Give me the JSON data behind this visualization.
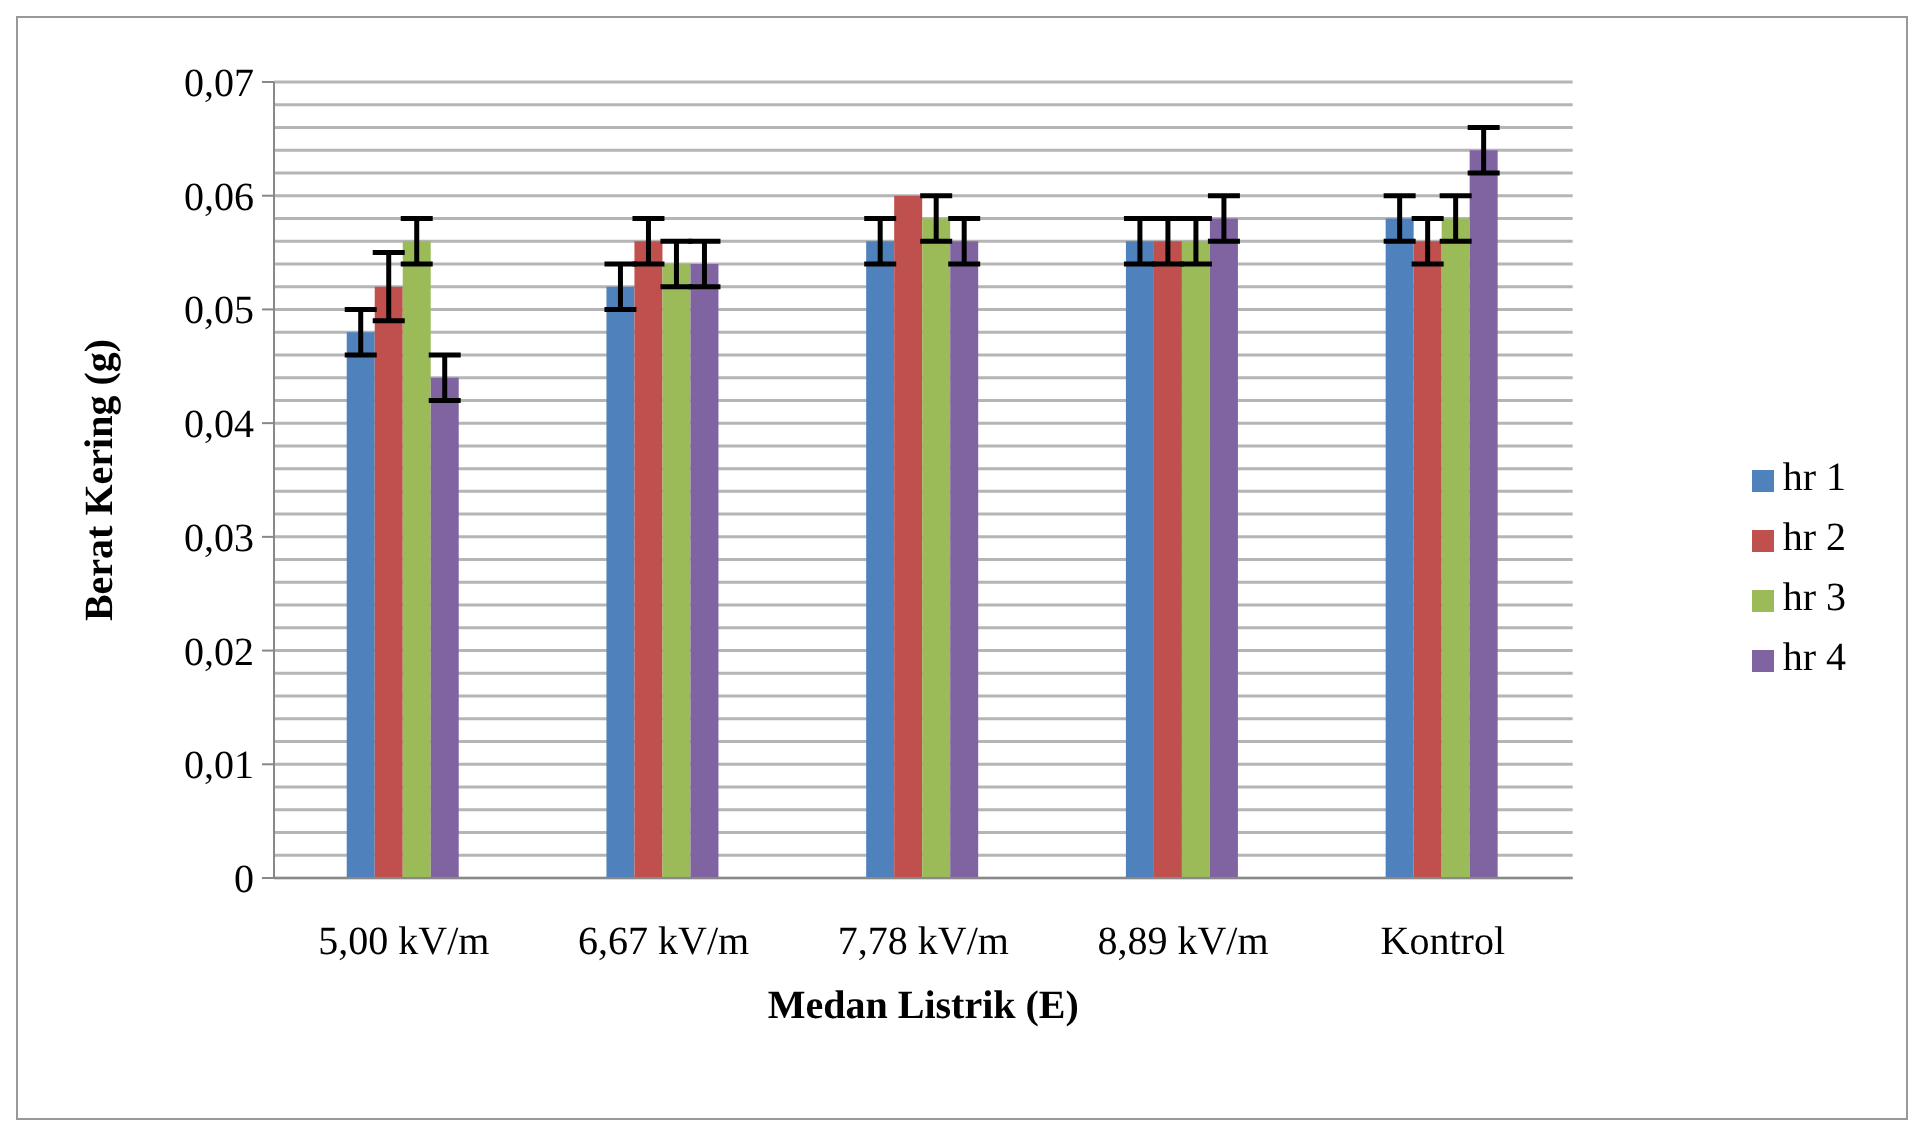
{
  "chart_data": {
    "type": "bar",
    "xlabel": "Medan Listrik (E)",
    "ylabel": "Berat Kering (g)",
    "categories": [
      "5,00 kV/m",
      "6,67 kV/m",
      "7,78 kV/m",
      "8,89 kV/m",
      "Kontrol"
    ],
    "series": [
      {
        "name": "hr 1",
        "color": "#4f81bd",
        "values": [
          0.048,
          0.052,
          0.056,
          0.056,
          0.058
        ],
        "errors": [
          0.002,
          0.002,
          0.002,
          0.002,
          0.002
        ]
      },
      {
        "name": "hr 2",
        "color": "#c0504d",
        "values": [
          0.052,
          0.056,
          0.06,
          0.056,
          0.056
        ],
        "errors": [
          0.003,
          0.002,
          0,
          0.002,
          0.002
        ]
      },
      {
        "name": "hr 3",
        "color": "#9bbb59",
        "values": [
          0.056,
          0.054,
          0.058,
          0.056,
          0.058
        ],
        "errors": [
          0.002,
          0.002,
          0.002,
          0.002,
          0.002
        ]
      },
      {
        "name": "hr 4",
        "color": "#8064a2",
        "values": [
          0.044,
          0.054,
          0.056,
          0.058,
          0.064
        ],
        "errors": [
          0.002,
          0.002,
          0.002,
          0.002,
          0.002
        ]
      }
    ],
    "ylim": [
      0,
      0.07
    ],
    "yticks": [
      {
        "value": 0,
        "label": "0"
      },
      {
        "value": 0.002,
        "label": null
      },
      {
        "value": 0.004,
        "label": null
      },
      {
        "value": 0.006,
        "label": null
      },
      {
        "value": 0.008,
        "label": null
      },
      {
        "value": 0.01,
        "label": "0,01"
      },
      {
        "value": 0.012,
        "label": null
      },
      {
        "value": 0.014,
        "label": null
      },
      {
        "value": 0.016,
        "label": null
      },
      {
        "value": 0.018,
        "label": null
      },
      {
        "value": 0.02,
        "label": "0,02"
      },
      {
        "value": 0.022,
        "label": null
      },
      {
        "value": 0.024,
        "label": null
      },
      {
        "value": 0.026,
        "label": null
      },
      {
        "value": 0.028,
        "label": null
      },
      {
        "value": 0.03,
        "label": "0,03"
      },
      {
        "value": 0.032,
        "label": null
      },
      {
        "value": 0.034,
        "label": null
      },
      {
        "value": 0.036,
        "label": null
      },
      {
        "value": 0.038,
        "label": null
      },
      {
        "value": 0.04,
        "label": "0,04"
      },
      {
        "value": 0.042,
        "label": null
      },
      {
        "value": 0.044,
        "label": null
      },
      {
        "value": 0.046,
        "label": null
      },
      {
        "value": 0.048,
        "label": null
      },
      {
        "value": 0.05,
        "label": "0,05"
      },
      {
        "value": 0.052,
        "label": null
      },
      {
        "value": 0.054,
        "label": null
      },
      {
        "value": 0.056,
        "label": null
      },
      {
        "value": 0.058,
        "label": null
      },
      {
        "value": 0.06,
        "label": "0,06"
      },
      {
        "value": 0.062,
        "label": null
      },
      {
        "value": 0.064,
        "label": null
      },
      {
        "value": 0.066,
        "label": null
      },
      {
        "value": 0.068,
        "label": null
      },
      {
        "value": 0.07,
        "label": "0,07"
      }
    ],
    "grid": "y",
    "legend": "right"
  }
}
